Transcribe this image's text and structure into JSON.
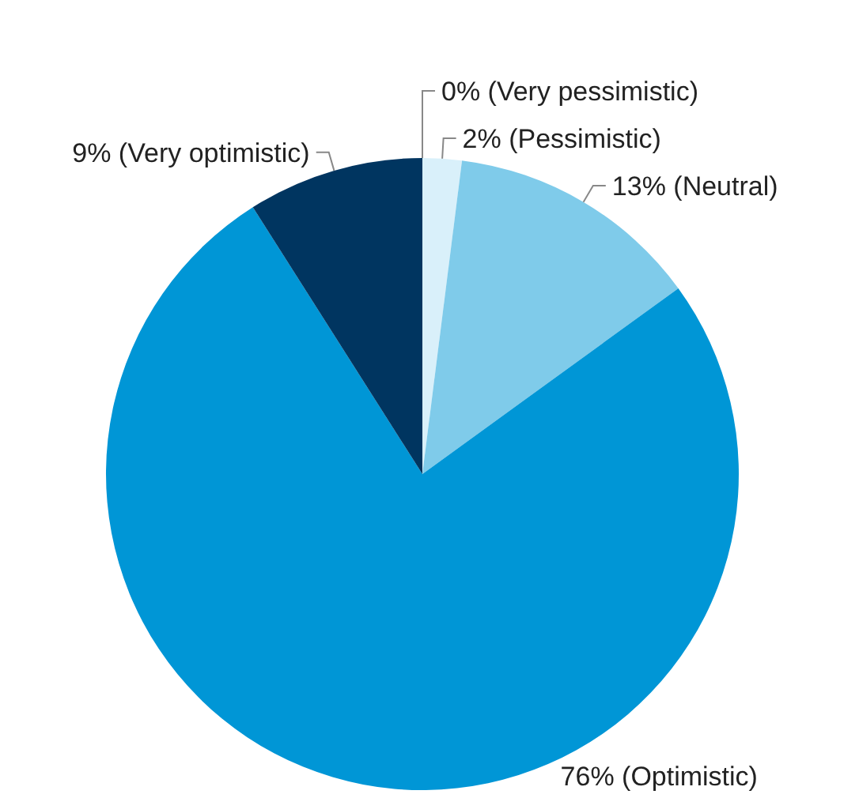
{
  "chart_data": {
    "type": "pie",
    "categories": [
      "0% (Very pessimistic)",
      "2% (Pessimistic)",
      "13% (Neutral)",
      "76% (Optimistic)",
      "9% (Very optimistic)"
    ],
    "values": [
      0,
      2,
      13,
      76,
      9
    ],
    "colors": [
      "#e6f4fb",
      "#d9f0fa",
      "#7fcbea",
      "#0096d6",
      "#003560"
    ],
    "legend": false
  }
}
